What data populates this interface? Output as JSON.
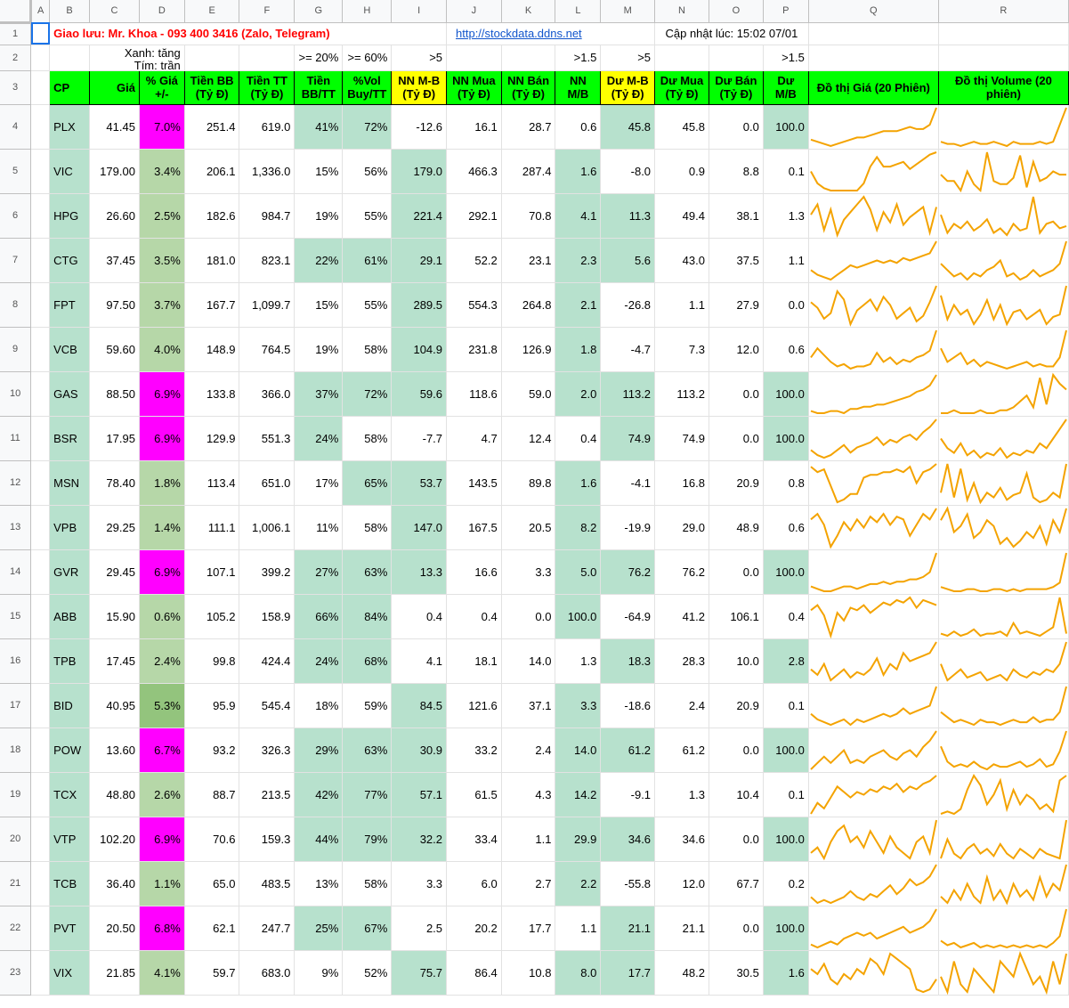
{
  "col_letters": [
    "A",
    "B",
    "C",
    "D",
    "E",
    "F",
    "G",
    "H",
    "I",
    "J",
    "K",
    "L",
    "M",
    "N",
    "O",
    "P",
    "Q",
    "R"
  ],
  "contact": "Giao lưu: Mr. Khoa - 093 400 3416 (Zalo, Telegram)",
  "site_link": "http://stockdata.ddns.net",
  "updated": "Cập nhật lúc: 15:02 07/01",
  "legend_green": "Xanh: tăng",
  "legend_purple": "Tím: trần",
  "thresholds": {
    "G": ">= 20%",
    "H": ">= 60%",
    "I": ">5",
    "L": ">1.5",
    "M": ">5",
    "P": ">1.5"
  },
  "headers": {
    "B": "CP",
    "C": "Giá",
    "D": "% Giá +/-",
    "E": "Tiền BB (Tỷ Đ)",
    "F": "Tiền TT (Tỷ Đ)",
    "G": "Tiền BB/TT",
    "H": "%Vol Buy/TT",
    "I": "NN M-B (Tỷ Đ)",
    "J": "NN Mua (Tỷ Đ)",
    "K": "NN Bán (Tỷ Đ)",
    "L": "NN M/B",
    "M": "Dư M-B (Tỷ Đ)",
    "N": "Dư Mua (Tỷ Đ)",
    "O": "Dư Bán (Tỷ Đ)",
    "P": "Dư M/B",
    "Q": "Đồ thị Giá (20 Phiên)",
    "R": "Đồ thị Volume (20 phiên)"
  },
  "colors": {
    "header_green": "#00ff00",
    "header_yellow": "#ffff00",
    "cell_green": "#b7e1cd",
    "ceiling_magenta": "#ff00ff",
    "spark": "#f4a300",
    "title_red": "#ff0000"
  },
  "rows": [
    {
      "cp": "PLX",
      "gia": "41.45",
      "pct": "7.0%",
      "bb": "251.4",
      "tt": "619.0",
      "bbtt": "41%",
      "vol": "72%",
      "nnmb": "-12.6",
      "nnmua": "16.1",
      "nnban": "28.7",
      "nnmbr": "0.6",
      "dumb": "45.8",
      "dumua": "45.8",
      "duban": "0.0",
      "dumbr": "100.0",
      "price": [
        5,
        4,
        3,
        2,
        3,
        4,
        5,
        6,
        6,
        7,
        8,
        9,
        9,
        9,
        10,
        11,
        10,
        10,
        12,
        20
      ],
      "volume": [
        4,
        3,
        3,
        2,
        3,
        4,
        3,
        3,
        4,
        3,
        2,
        4,
        3,
        3,
        3,
        4,
        3,
        4,
        12,
        20
      ]
    },
    {
      "cp": "VIC",
      "gia": "179.00",
      "pct": "3.4%",
      "bb": "206.1",
      "tt": "1,336.0",
      "bbtt": "15%",
      "vol": "56%",
      "nnmb": "179.0",
      "nnmua": "466.3",
      "nnban": "287.4",
      "nnmbr": "1.6",
      "dumb": "-8.0",
      "dumua": "0.9",
      "duban": "8.8",
      "dumbr": "0.1",
      "price": [
        10,
        5,
        3,
        2,
        2,
        2,
        2,
        2,
        5,
        12,
        16,
        12,
        12,
        13,
        14,
        11,
        13,
        15,
        17,
        18
      ],
      "volume": [
        8,
        6,
        6,
        3,
        9,
        5,
        3,
        15,
        6,
        5,
        5,
        7,
        14,
        4,
        12,
        6,
        7,
        9,
        8,
        8
      ]
    },
    {
      "cp": "HPG",
      "gia": "26.60",
      "pct": "2.5%",
      "bb": "182.6",
      "tt": "984.7",
      "bbtt": "19%",
      "vol": "55%",
      "nnmb": "221.4",
      "nnmua": "292.1",
      "nnban": "70.8",
      "nnmbr": "4.1",
      "dumb": "11.3",
      "dumua": "49.4",
      "duban": "38.1",
      "dumbr": "1.3",
      "price": [
        12,
        16,
        6,
        14,
        4,
        10,
        13,
        16,
        19,
        14,
        6,
        13,
        9,
        16,
        8,
        11,
        13,
        15,
        5,
        15
      ],
      "volume": [
        12,
        4,
        8,
        6,
        9,
        5,
        7,
        10,
        4,
        6,
        3,
        8,
        5,
        6,
        20,
        4,
        8,
        9,
        6,
        7
      ]
    },
    {
      "cp": "CTG",
      "gia": "37.45",
      "pct": "3.5%",
      "bb": "181.0",
      "tt": "823.1",
      "bbtt": "22%",
      "vol": "61%",
      "nnmb": "29.1",
      "nnmua": "52.2",
      "nnban": "23.1",
      "nnmbr": "2.3",
      "dumb": "5.6",
      "dumua": "43.0",
      "duban": "37.5",
      "dumbr": "1.1",
      "price": [
        8,
        6,
        5,
        4,
        6,
        8,
        10,
        9,
        10,
        11,
        12,
        11,
        12,
        11,
        13,
        12,
        13,
        14,
        15,
        20
      ],
      "volume": [
        8,
        6,
        4,
        5,
        3,
        5,
        4,
        6,
        7,
        9,
        4,
        5,
        3,
        4,
        6,
        4,
        5,
        6,
        8,
        15
      ]
    },
    {
      "cp": "FPT",
      "gia": "97.50",
      "pct": "3.7%",
      "bb": "167.7",
      "tt": "1,099.7",
      "bbtt": "15%",
      "vol": "55%",
      "nnmb": "289.5",
      "nnmua": "554.3",
      "nnban": "264.8",
      "nnmbr": "2.1",
      "dumb": "-26.8",
      "dumua": "1.1",
      "duban": "27.9",
      "dumbr": "0.0",
      "price": [
        12,
        10,
        6,
        8,
        16,
        13,
        4,
        9,
        11,
        13,
        9,
        14,
        11,
        6,
        8,
        10,
        5,
        7,
        12,
        18
      ],
      "volume": [
        16,
        6,
        12,
        8,
        10,
        4,
        8,
        14,
        6,
        12,
        4,
        9,
        10,
        6,
        8,
        10,
        4,
        7,
        8,
        20
      ]
    },
    {
      "cp": "VCB",
      "gia": "59.60",
      "pct": "4.0%",
      "bb": "148.9",
      "tt": "764.5",
      "bbtt": "19%",
      "vol": "58%",
      "nnmb": "104.9",
      "nnmua": "231.8",
      "nnban": "126.9",
      "nnmbr": "1.8",
      "dumb": "-4.7",
      "dumua": "7.3",
      "duban": "12.0",
      "dumbr": "0.6",
      "price": [
        8,
        12,
        9,
        6,
        4,
        5,
        3,
        4,
        4,
        5,
        10,
        6,
        8,
        5,
        7,
        6,
        8,
        9,
        11,
        20
      ],
      "volume": [
        12,
        6,
        8,
        10,
        5,
        7,
        4,
        6,
        5,
        4,
        3,
        4,
        5,
        6,
        4,
        5,
        4,
        4,
        8,
        20
      ]
    },
    {
      "cp": "GAS",
      "gia": "88.50",
      "pct": "6.9%",
      "bb": "133.8",
      "tt": "366.0",
      "bbtt": "37%",
      "vol": "72%",
      "nnmb": "59.6",
      "nnmua": "118.6",
      "nnban": "59.0",
      "nnmbr": "2.0",
      "dumb": "113.2",
      "dumua": "113.2",
      "duban": "0.0",
      "dumbr": "100.0",
      "price": [
        3,
        2,
        2,
        3,
        3,
        2,
        4,
        4,
        5,
        5,
        6,
        6,
        7,
        8,
        9,
        10,
        12,
        13,
        15,
        20
      ],
      "volume": [
        2,
        2,
        3,
        2,
        2,
        2,
        3,
        2,
        2,
        3,
        3,
        4,
        6,
        8,
        4,
        14,
        5,
        15,
        12,
        10
      ]
    },
    {
      "cp": "BSR",
      "gia": "17.95",
      "pct": "6.9%",
      "bb": "129.9",
      "tt": "551.3",
      "bbtt": "24%",
      "vol": "58%",
      "nnmb": "-7.7",
      "nnmua": "4.7",
      "nnban": "12.4",
      "nnmbr": "0.4",
      "dumb": "74.9",
      "dumua": "74.9",
      "duban": "0.0",
      "dumbr": "100.0",
      "price": [
        6,
        4,
        3,
        4,
        6,
        8,
        5,
        7,
        8,
        9,
        11,
        8,
        10,
        9,
        11,
        12,
        10,
        13,
        15,
        18
      ],
      "volume": [
        12,
        8,
        6,
        10,
        5,
        7,
        4,
        6,
        5,
        8,
        4,
        6,
        5,
        7,
        6,
        10,
        8,
        12,
        16,
        20
      ]
    },
    {
      "cp": "MSN",
      "gia": "78.40",
      "pct": "1.8%",
      "bb": "113.4",
      "tt": "651.0",
      "bbtt": "17%",
      "vol": "65%",
      "nnmb": "53.7",
      "nnmua": "143.5",
      "nnban": "89.8",
      "nnmbr": "1.6",
      "dumb": "-4.1",
      "dumua": "16.8",
      "duban": "20.9",
      "dumbr": "0.8",
      "price": [
        16,
        14,
        15,
        9,
        3,
        4,
        6,
        6,
        12,
        13,
        13,
        14,
        14,
        15,
        14,
        16,
        10,
        14,
        15,
        17
      ],
      "volume": [
        8,
        20,
        6,
        18,
        5,
        12,
        4,
        8,
        6,
        10,
        5,
        7,
        8,
        16,
        6,
        4,
        5,
        8,
        6,
        20
      ]
    },
    {
      "cp": "VPB",
      "gia": "29.25",
      "pct": "1.4%",
      "bb": "111.1",
      "tt": "1,006.1",
      "bbtt": "11%",
      "vol": "58%",
      "nnmb": "147.0",
      "nnmua": "167.5",
      "nnban": "20.5",
      "nnmbr": "8.2",
      "dumb": "-19.9",
      "dumua": "29.0",
      "duban": "48.9",
      "dumbr": "0.6",
      "price": [
        14,
        16,
        12,
        4,
        8,
        13,
        10,
        14,
        11,
        15,
        13,
        16,
        12,
        15,
        14,
        8,
        12,
        16,
        14,
        18
      ],
      "volume": [
        12,
        16,
        8,
        10,
        14,
        6,
        8,
        12,
        10,
        4,
        6,
        3,
        5,
        8,
        6,
        10,
        4,
        12,
        8,
        16
      ]
    },
    {
      "cp": "GVR",
      "gia": "29.45",
      "pct": "6.9%",
      "bb": "107.1",
      "tt": "399.2",
      "bbtt": "27%",
      "vol": "63%",
      "nnmb": "13.3",
      "nnmua": "16.6",
      "nnban": "3.3",
      "nnmbr": "5.0",
      "dumb": "76.2",
      "dumua": "76.2",
      "duban": "0.0",
      "dumbr": "100.0",
      "price": [
        6,
        5,
        4,
        4,
        5,
        6,
        6,
        5,
        6,
        7,
        7,
        8,
        7,
        8,
        8,
        9,
        9,
        10,
        12,
        20
      ],
      "volume": [
        4,
        3,
        2,
        2,
        3,
        3,
        2,
        2,
        3,
        3,
        2,
        3,
        2,
        3,
        3,
        3,
        3,
        4,
        6,
        20
      ]
    },
    {
      "cp": "ABB",
      "gia": "15.90",
      "pct": "0.6%",
      "bb": "105.2",
      "tt": "158.9",
      "bbtt": "66%",
      "vol": "84%",
      "nnmb": "0.4",
      "nnmua": "0.4",
      "nnban": "0.0",
      "nnmbr": "100.0",
      "dumb": "-64.9",
      "dumua": "41.2",
      "duban": "106.1",
      "dumbr": "0.4",
      "price": [
        14,
        16,
        12,
        4,
        13,
        10,
        15,
        14,
        16,
        13,
        15,
        17,
        16,
        18,
        17,
        19,
        15,
        18,
        17,
        16
      ],
      "volume": [
        3,
        2,
        4,
        2,
        3,
        5,
        2,
        3,
        3,
        4,
        2,
        8,
        3,
        4,
        3,
        2,
        4,
        6,
        20,
        3
      ]
    },
    {
      "cp": "TPB",
      "gia": "17.45",
      "pct": "2.4%",
      "bb": "99.8",
      "tt": "424.4",
      "bbtt": "24%",
      "vol": "68%",
      "nnmb": "4.1",
      "nnmua": "18.1",
      "nnban": "14.0",
      "nnmbr": "1.3",
      "dumb": "18.3",
      "dumua": "28.3",
      "duban": "10.0",
      "dumbr": "2.8",
      "price": [
        8,
        6,
        10,
        4,
        6,
        8,
        5,
        7,
        6,
        8,
        12,
        6,
        10,
        8,
        14,
        11,
        12,
        13,
        14,
        18
      ],
      "volume": [
        10,
        4,
        6,
        8,
        5,
        6,
        7,
        4,
        5,
        6,
        4,
        8,
        6,
        5,
        7,
        6,
        8,
        7,
        10,
        18
      ]
    },
    {
      "cp": "BID",
      "gia": "40.95",
      "pct": "5.3%",
      "bb": "95.9",
      "tt": "545.4",
      "bbtt": "18%",
      "vol": "59%",
      "nnmb": "84.5",
      "nnmua": "121.6",
      "nnban": "37.1",
      "nnmbr": "3.3",
      "dumb": "-18.6",
      "dumua": "2.4",
      "duban": "20.9",
      "dumbr": "0.1",
      "price": [
        8,
        6,
        5,
        4,
        5,
        6,
        4,
        6,
        5,
        6,
        7,
        8,
        7,
        8,
        10,
        8,
        9,
        10,
        11,
        18
      ],
      "volume": [
        8,
        6,
        4,
        5,
        4,
        3,
        5,
        4,
        4,
        3,
        4,
        5,
        4,
        4,
        6,
        4,
        5,
        5,
        8,
        18
      ]
    },
    {
      "cp": "POW",
      "gia": "13.60",
      "pct": "6.7%",
      "bb": "93.2",
      "tt": "326.3",
      "bbtt": "29%",
      "vol": "63%",
      "nnmb": "30.9",
      "nnmua": "33.2",
      "nnban": "2.4",
      "nnmbr": "14.0",
      "dumb": "61.2",
      "dumua": "61.2",
      "duban": "0.0",
      "dumbr": "100.0",
      "price": [
        6,
        8,
        10,
        8,
        10,
        12,
        8,
        9,
        8,
        10,
        11,
        12,
        10,
        9,
        11,
        12,
        10,
        13,
        15,
        18
      ],
      "volume": [
        12,
        6,
        4,
        5,
        4,
        6,
        4,
        3,
        5,
        4,
        4,
        5,
        6,
        4,
        5,
        7,
        4,
        5,
        10,
        18
      ]
    },
    {
      "cp": "TCX",
      "gia": "48.80",
      "pct": "2.6%",
      "bb": "88.7",
      "tt": "213.5",
      "bbtt": "42%",
      "vol": "77%",
      "nnmb": "57.1",
      "nnmua": "61.5",
      "nnban": "4.3",
      "nnmbr": "14.2",
      "dumb": "-9.1",
      "dumua": "1.3",
      "duban": "10.4",
      "dumbr": "0.1",
      "price": [
        4,
        8,
        6,
        10,
        14,
        12,
        10,
        12,
        11,
        13,
        12,
        14,
        13,
        15,
        12,
        14,
        13,
        15,
        16,
        18
      ],
      "volume": [
        2,
        3,
        2,
        4,
        12,
        18,
        14,
        6,
        10,
        16,
        4,
        12,
        6,
        10,
        8,
        4,
        6,
        3,
        16,
        18
      ]
    },
    {
      "cp": "VTP",
      "gia": "102.20",
      "pct": "6.9%",
      "bb": "70.6",
      "tt": "159.3",
      "bbtt": "44%",
      "vol": "79%",
      "nnmb": "32.2",
      "nnmua": "33.4",
      "nnban": "1.1",
      "nnmbr": "29.9",
      "dumb": "34.6",
      "dumua": "34.6",
      "duban": "0.0",
      "dumbr": "100.0",
      "price": [
        6,
        8,
        4,
        10,
        14,
        16,
        10,
        12,
        8,
        14,
        10,
        6,
        12,
        8,
        6,
        4,
        10,
        12,
        6,
        18
      ],
      "volume": [
        4,
        12,
        6,
        4,
        8,
        10,
        6,
        8,
        5,
        10,
        6,
        4,
        8,
        6,
        4,
        8,
        6,
        5,
        4,
        20
      ]
    },
    {
      "cp": "TCB",
      "gia": "36.40",
      "pct": "1.1%",
      "bb": "65.0",
      "tt": "483.5",
      "bbtt": "13%",
      "vol": "58%",
      "nnmb": "3.3",
      "nnmua": "6.0",
      "nnban": "2.7",
      "nnmbr": "2.2",
      "dumb": "-55.8",
      "dumua": "12.0",
      "duban": "67.7",
      "dumbr": "0.2",
      "price": [
        6,
        4,
        5,
        4,
        5,
        6,
        8,
        6,
        5,
        7,
        6,
        8,
        10,
        7,
        9,
        12,
        10,
        11,
        13,
        17
      ],
      "volume": [
        6,
        4,
        8,
        5,
        10,
        6,
        4,
        12,
        5,
        8,
        4,
        10,
        6,
        8,
        5,
        12,
        6,
        10,
        8,
        16
      ]
    },
    {
      "cp": "PVT",
      "gia": "20.50",
      "pct": "6.8%",
      "bb": "62.1",
      "tt": "247.7",
      "bbtt": "25%",
      "vol": "67%",
      "nnmb": "2.5",
      "nnmua": "20.2",
      "nnban": "17.7",
      "nnmbr": "1.1",
      "dumb": "21.1",
      "dumua": "21.1",
      "duban": "0.0",
      "dumbr": "100.0",
      "price": [
        6,
        5,
        6,
        7,
        6,
        8,
        9,
        10,
        9,
        10,
        8,
        9,
        10,
        11,
        12,
        10,
        11,
        12,
        14,
        18
      ],
      "volume": [
        6,
        4,
        5,
        3,
        4,
        5,
        3,
        4,
        3,
        4,
        3,
        4,
        3,
        4,
        3,
        4,
        3,
        5,
        8,
        20
      ]
    },
    {
      "cp": "VIX",
      "gia": "21.85",
      "pct": "4.1%",
      "bb": "59.7",
      "tt": "683.0",
      "bbtt": "9%",
      "vol": "52%",
      "nnmb": "75.7",
      "nnmua": "86.4",
      "nnban": "10.8",
      "nnmbr": "8.0",
      "dumb": "17.7",
      "dumua": "48.2",
      "duban": "30.5",
      "dumbr": "1.6",
      "price": [
        12,
        10,
        14,
        8,
        6,
        10,
        8,
        12,
        10,
        16,
        14,
        10,
        18,
        16,
        14,
        12,
        4,
        3,
        4,
        8
      ],
      "volume": [
        8,
        4,
        12,
        6,
        4,
        10,
        8,
        6,
        4,
        12,
        10,
        8,
        14,
        10,
        6,
        8,
        4,
        12,
        6,
        14
      ]
    }
  ]
}
